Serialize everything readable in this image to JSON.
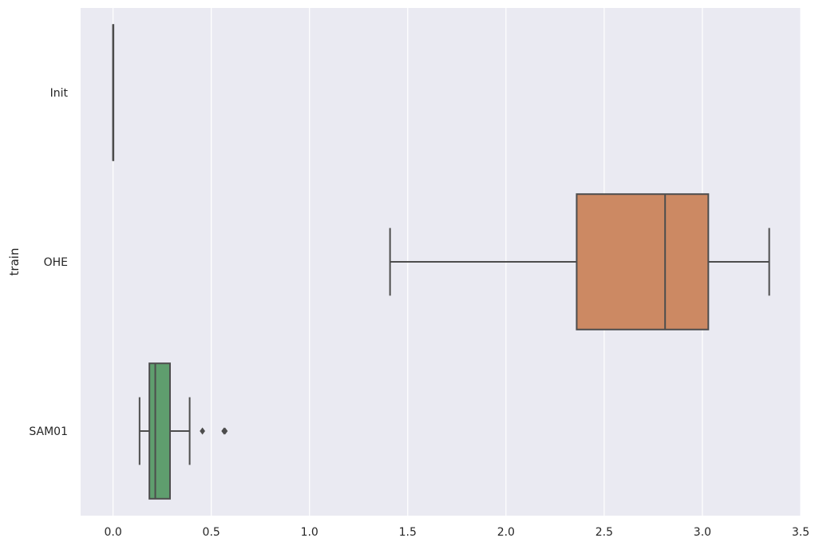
{
  "chart_data": {
    "type": "boxplot",
    "orientation": "horizontal",
    "title": "",
    "xlabel": "",
    "ylabel": "train",
    "xlim": [
      -0.165,
      3.5
    ],
    "xticks": [
      0.0,
      0.5,
      1.0,
      1.5,
      2.0,
      2.5,
      3.0,
      3.5
    ],
    "xtick_labels": [
      "0.0",
      "0.5",
      "1.0",
      "1.5",
      "2.0",
      "2.5",
      "3.0",
      "3.5"
    ],
    "grid": true,
    "categories": [
      "Init",
      "OHE",
      "SAM01"
    ],
    "boxes": [
      {
        "category": "Init",
        "whisker_low": 0.0,
        "q1": 0.0,
        "median": 0.0,
        "q3": 0.0,
        "whisker_high": 0.0,
        "outliers": [],
        "color": "#4c72b0"
      },
      {
        "category": "OHE",
        "whisker_low": 1.41,
        "q1": 2.36,
        "median": 2.81,
        "q3": 3.03,
        "whisker_high": 3.34,
        "outliers": [],
        "color": "#cc8963"
      },
      {
        "category": "SAM01",
        "whisker_low": 0.135,
        "q1": 0.185,
        "median": 0.215,
        "q3": 0.29,
        "whisker_high": 0.39,
        "outliers": [
          0.455,
          0.565,
          0.57
        ],
        "color": "#5f9e6e"
      }
    ],
    "colors": {
      "background": "#eaeaf2",
      "grid": "#ffffff",
      "line": "#4d4d4d"
    }
  }
}
